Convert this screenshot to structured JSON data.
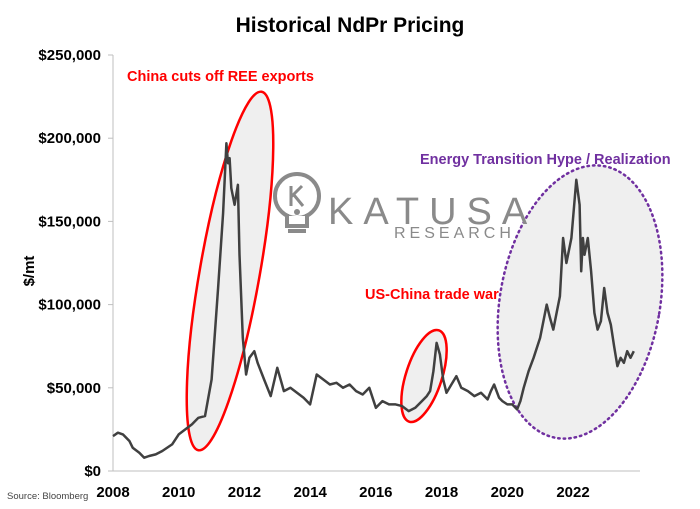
{
  "chart_data": {
    "type": "line",
    "title": "Historical NdPr Pricing",
    "xlabel": "",
    "ylabel": "$/mt",
    "xlim": [
      2008,
      2023.9
    ],
    "ylim": [
      0,
      250000
    ],
    "x_ticks": [
      2008,
      2010,
      2012,
      2014,
      2016,
      2018,
      2020,
      2022
    ],
    "y_ticks": [
      0,
      50000,
      100000,
      150000,
      200000,
      250000
    ],
    "y_tick_labels": [
      "$0",
      "$50,000",
      "$100,000",
      "$150,000",
      "$200,000",
      "$250,000"
    ],
    "grid": false,
    "legend": "none",
    "series": [
      {
        "color": "#404040",
        "x": [
          2008.0,
          2008.15,
          2008.3,
          2008.5,
          2008.6,
          2008.8,
          2008.95,
          2009.1,
          2009.3,
          2009.5,
          2009.8,
          2010.0,
          2010.2,
          2010.4,
          2010.6,
          2010.8,
          2011.0,
          2011.2,
          2011.35,
          2011.45,
          2011.5,
          2011.55,
          2011.6,
          2011.7,
          2011.8,
          2011.85,
          2011.95,
          2012.05,
          2012.15,
          2012.3,
          2012.4,
          2012.6,
          2012.8,
          2013.0,
          2013.2,
          2013.4,
          2013.6,
          2013.8,
          2014.0,
          2014.2,
          2014.4,
          2014.6,
          2014.8,
          2015.0,
          2015.2,
          2015.4,
          2015.6,
          2015.8,
          2016.0,
          2016.2,
          2016.4,
          2016.6,
          2016.8,
          2017.0,
          2017.2,
          2017.4,
          2017.55,
          2017.65,
          2017.75,
          2017.85,
          2017.95,
          2018.05,
          2018.15,
          2018.3,
          2018.45,
          2018.6,
          2018.8,
          2019.0,
          2019.2,
          2019.4,
          2019.5,
          2019.6,
          2019.75,
          2019.85,
          2020.0,
          2020.15,
          2020.3,
          2020.4,
          2020.5,
          2020.65,
          2020.8,
          2021.0,
          2021.1,
          2021.2,
          2021.3,
          2021.4,
          2021.5,
          2021.6,
          2021.7,
          2021.8,
          2021.95,
          2022.1,
          2022.2,
          2022.25,
          2022.3,
          2022.35,
          2022.45,
          2022.55,
          2022.65,
          2022.75,
          2022.85,
          2022.95,
          2023.05,
          2023.15,
          2023.25,
          2023.35,
          2023.45,
          2023.55,
          2023.65,
          2023.75,
          2023.85
        ],
        "values": [
          21000,
          23000,
          22000,
          18000,
          14000,
          11000,
          8000,
          9000,
          10000,
          12000,
          16000,
          22000,
          25000,
          28000,
          32000,
          33000,
          55000,
          110000,
          155000,
          197000,
          185000,
          188000,
          170000,
          160000,
          172000,
          130000,
          80000,
          58000,
          68000,
          72000,
          65000,
          55000,
          45000,
          62000,
          48000,
          50000,
          47000,
          44000,
          40000,
          58000,
          55000,
          52000,
          53000,
          50000,
          52000,
          48000,
          46000,
          50000,
          38000,
          42000,
          40000,
          40000,
          39000,
          36000,
          38000,
          42000,
          45000,
          48000,
          60000,
          77000,
          70000,
          55000,
          47000,
          52000,
          57000,
          50000,
          48000,
          45000,
          47000,
          43000,
          48000,
          52000,
          44000,
          42000,
          40000,
          40000,
          37000,
          42000,
          50000,
          60000,
          68000,
          80000,
          90000,
          100000,
          92000,
          85000,
          95000,
          105000,
          140000,
          125000,
          140000,
          175000,
          160000,
          120000,
          140000,
          130000,
          140000,
          120000,
          95000,
          85000,
          90000,
          110000,
          95000,
          88000,
          75000,
          63000,
          68000,
          65000,
          72000,
          68000,
          72000
        ]
      }
    ],
    "annotations": [
      {
        "text": "China cuts off REE exports",
        "color": "#ff0000"
      },
      {
        "text": "US-China trade war",
        "color": "#ff0000"
      },
      {
        "text": "Energy Transition Hype / Realization",
        "color": "#7030a0"
      }
    ],
    "source": "Source: Bloomberg"
  },
  "watermark": {
    "brand": "KATUSA",
    "sub": "RESEARCH",
    "color": "#8a8a8a"
  }
}
